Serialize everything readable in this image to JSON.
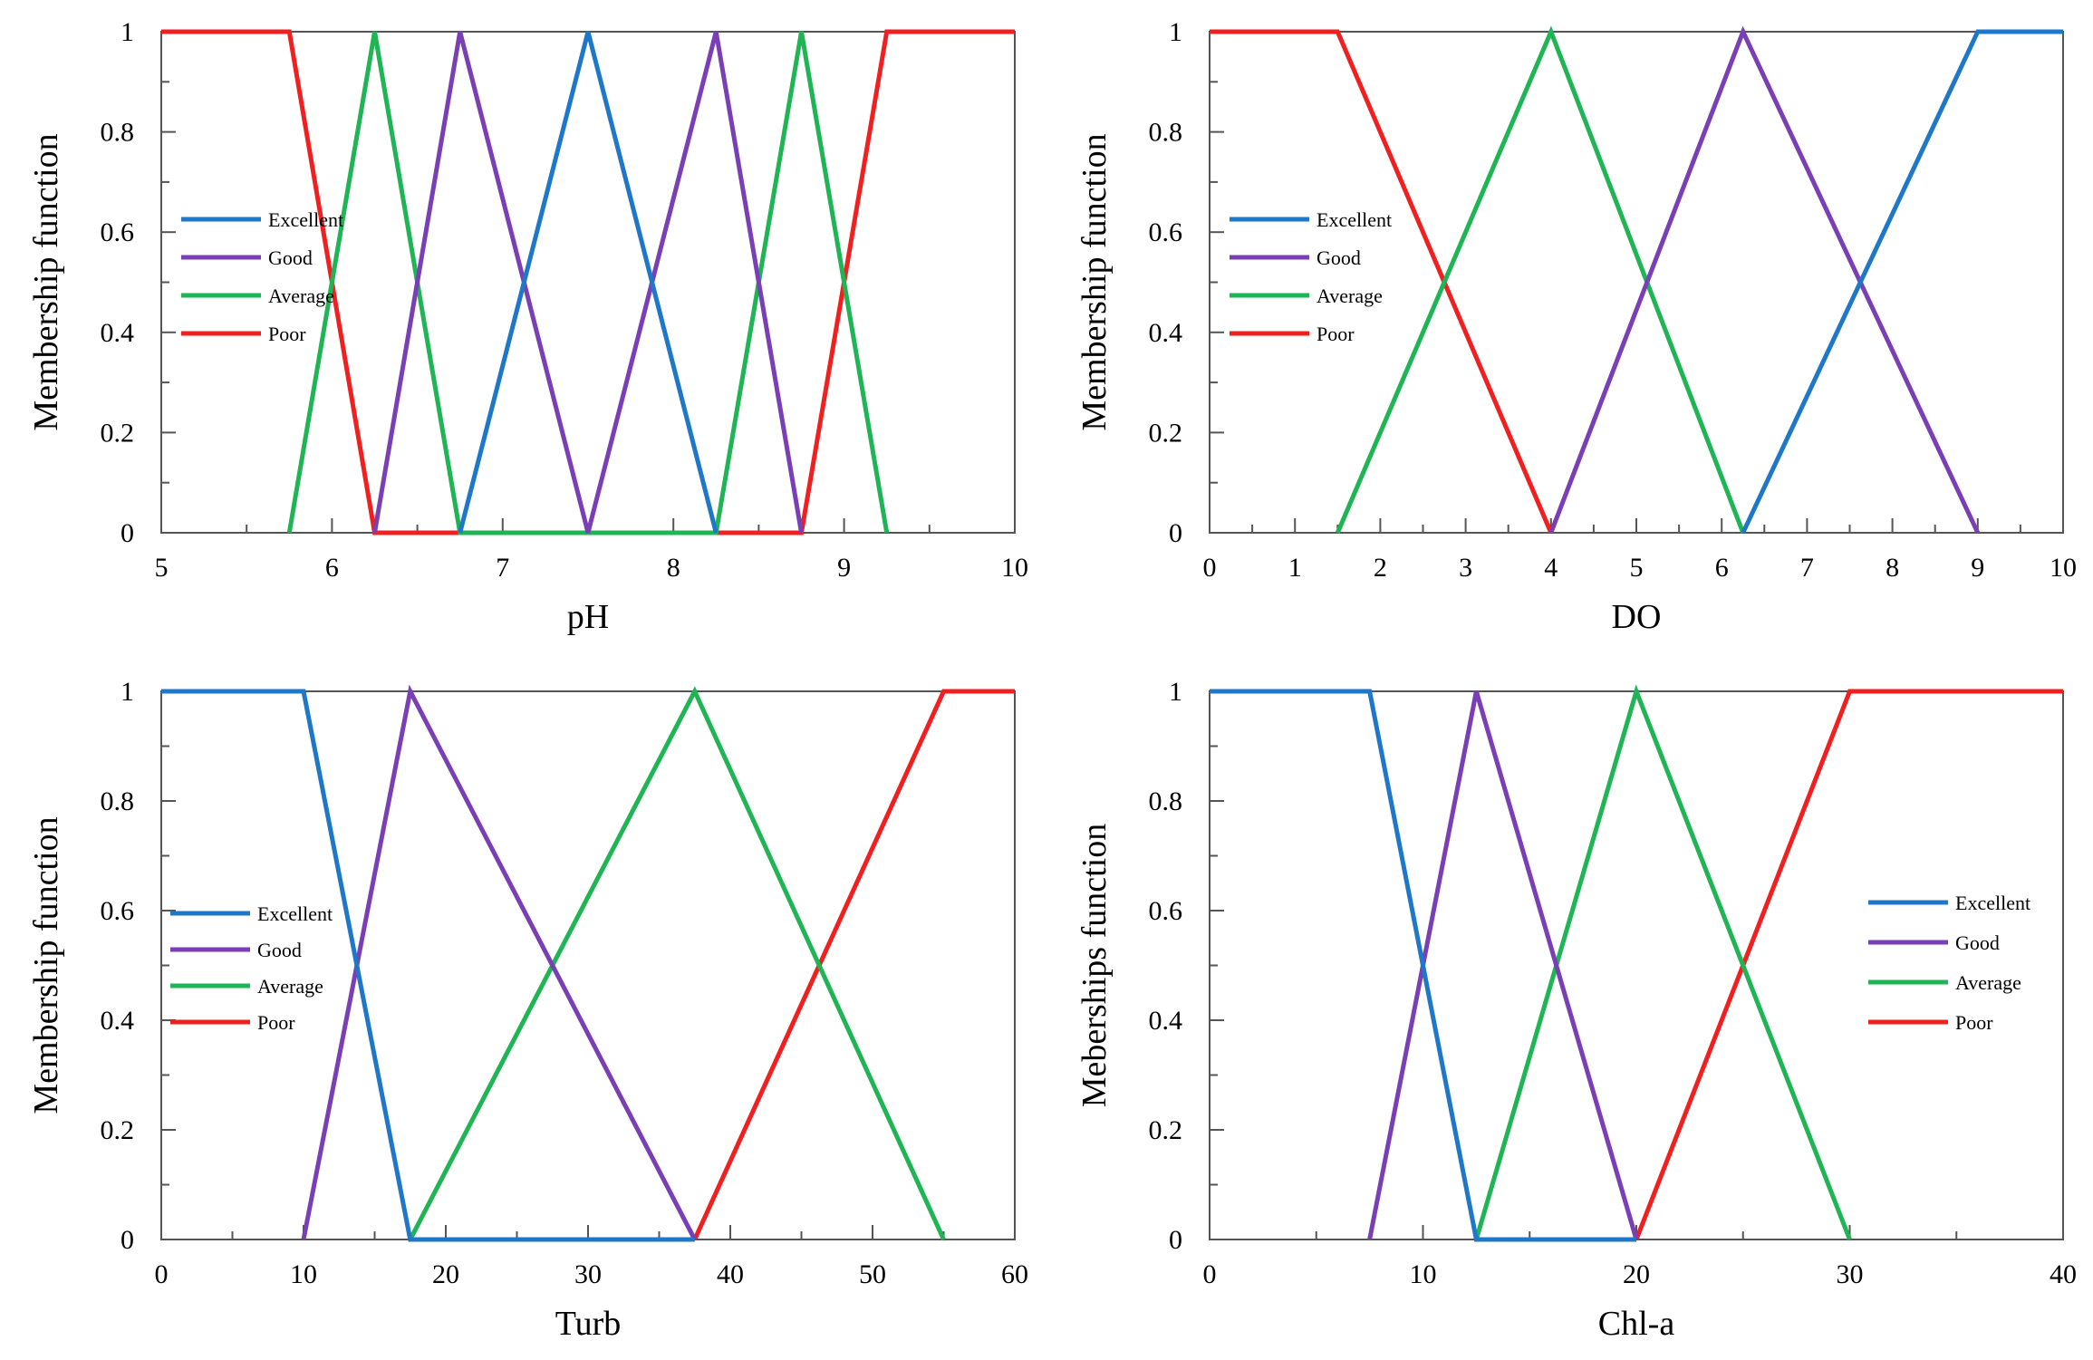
{
  "colors": {
    "Excellent": "#1f77c8",
    "Good": "#7a3fb5",
    "Average": "#1fb454",
    "Poor": "#f02020"
  },
  "chart_data": [
    {
      "type": "line",
      "xlabel": "pH",
      "ylabel": "Membership function",
      "xlim": [
        5,
        10
      ],
      "ylim": [
        0,
        1
      ],
      "xticks": [
        "5",
        "6",
        "7",
        "8",
        "9",
        "10"
      ],
      "yticks": [
        "0",
        "0.2",
        "0.4",
        "0.6",
        "0.8",
        "1"
      ],
      "grid": false,
      "legend": "center-left",
      "series": [
        {
          "name": "Excellent",
          "x": [
            6.75,
            7.5,
            8.25
          ],
          "y": [
            0,
            1,
            0
          ]
        },
        {
          "name": "Good",
          "x": [
            6.25,
            6.75,
            7.5,
            8.25,
            8.75
          ],
          "y": [
            0,
            1,
            0,
            1,
            0
          ]
        },
        {
          "name": "Average",
          "x": [
            5.75,
            6.25,
            6.75,
            8.25,
            8.75,
            9.25
          ],
          "y": [
            0,
            1,
            0,
            0,
            1,
            0
          ]
        },
        {
          "name": "Poor",
          "x": [
            5,
            5.75,
            6.25,
            8.75,
            9.25,
            10
          ],
          "y": [
            1,
            1,
            0,
            0,
            1,
            1
          ]
        }
      ]
    },
    {
      "type": "line",
      "xlabel": "DO",
      "ylabel": "Membership function",
      "xlim": [
        0,
        10
      ],
      "ylim": [
        0,
        1
      ],
      "xticks": [
        "0",
        "1",
        "2",
        "3",
        "4",
        "5",
        "6",
        "7",
        "8",
        "9",
        "10"
      ],
      "yticks": [
        "0",
        "0.2",
        "0.4",
        "0.6",
        "0.8",
        "1"
      ],
      "grid": false,
      "legend": "center-left",
      "series": [
        {
          "name": "Excellent",
          "x": [
            6.25,
            9,
            10
          ],
          "y": [
            0,
            1,
            1
          ]
        },
        {
          "name": "Good",
          "x": [
            4,
            6.25,
            9
          ],
          "y": [
            0,
            1,
            0
          ]
        },
        {
          "name": "Average",
          "x": [
            1.5,
            4,
            6.25
          ],
          "y": [
            0,
            1,
            0
          ]
        },
        {
          "name": "Poor",
          "x": [
            0,
            1.5,
            4
          ],
          "y": [
            1,
            1,
            0
          ]
        }
      ]
    },
    {
      "type": "line",
      "xlabel": "Turb",
      "ylabel": "Membership function",
      "xlim": [
        0,
        60
      ],
      "ylim": [
        0,
        1
      ],
      "xticks": [
        "0",
        "10",
        "20",
        "30",
        "40",
        "50",
        "60"
      ],
      "yticks": [
        "0",
        "0.2",
        "0.4",
        "0.6",
        "0.8",
        "1"
      ],
      "grid": false,
      "legend": "center-left",
      "series": [
        {
          "name": "Excellent",
          "x": [
            0,
            10,
            17.5,
            37.5
          ],
          "y": [
            1,
            1,
            0,
            0
          ]
        },
        {
          "name": "Good",
          "x": [
            10,
            17.5,
            37.5
          ],
          "y": [
            0,
            1,
            0
          ]
        },
        {
          "name": "Average",
          "x": [
            17.5,
            37.5,
            55
          ],
          "y": [
            0,
            1,
            0
          ]
        },
        {
          "name": "Poor",
          "x": [
            37.5,
            55,
            60
          ],
          "y": [
            0,
            1,
            1
          ]
        }
      ]
    },
    {
      "type": "line",
      "xlabel": "Chl-a",
      "ylabel": "Meberships function",
      "xlim": [
        0,
        40
      ],
      "ylim": [
        0,
        1
      ],
      "xticks": [
        "0",
        "10",
        "20",
        "30",
        "40"
      ],
      "yticks": [
        "0",
        "0.2",
        "0.4",
        "0.6",
        "0.8",
        "1"
      ],
      "grid": false,
      "legend": "center-right",
      "series": [
        {
          "name": "Excellent",
          "x": [
            0,
            7.5,
            12.5,
            20
          ],
          "y": [
            1,
            1,
            0,
            0
          ]
        },
        {
          "name": "Good",
          "x": [
            7.5,
            12.5,
            20
          ],
          "y": [
            0,
            1,
            0
          ]
        },
        {
          "name": "Average",
          "x": [
            12.5,
            20,
            30
          ],
          "y": [
            0,
            1,
            0
          ]
        },
        {
          "name": "Poor",
          "x": [
            20,
            30,
            40
          ],
          "y": [
            0,
            1,
            1
          ]
        }
      ]
    }
  ]
}
